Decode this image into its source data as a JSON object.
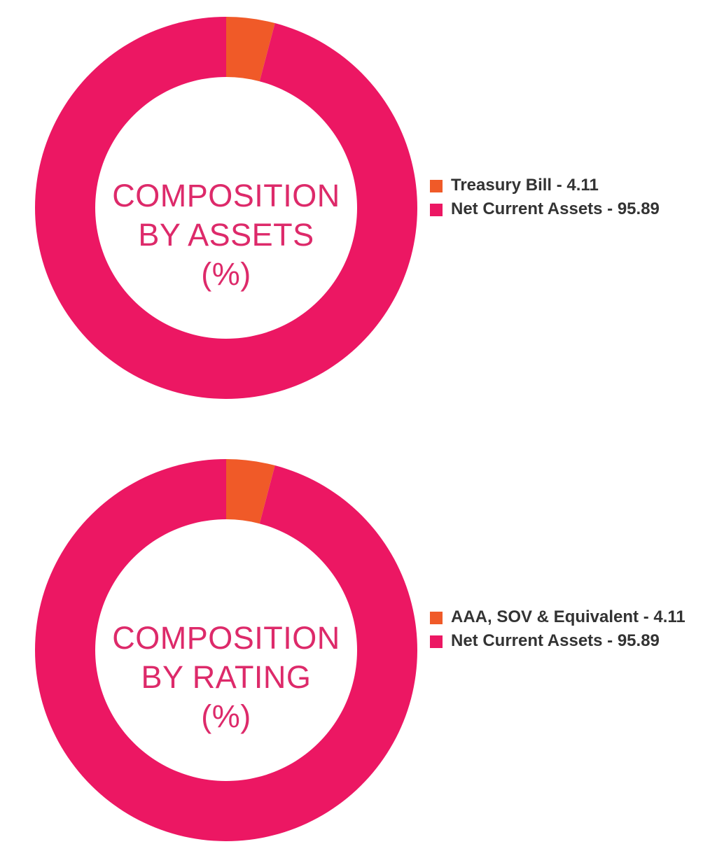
{
  "colors": {
    "orange": "#f05a28",
    "pink": "#ec1763",
    "title_pink": "#dd2a6a",
    "legend_text": "#333333",
    "background": "#ffffff"
  },
  "chart_data": [
    {
      "type": "pie",
      "donut": true,
      "title_lines": [
        "COMPOSITION",
        "BY ASSETS",
        "(%)"
      ],
      "categories": [
        "Treasury Bill",
        "Net Current Assets"
      ],
      "values": [
        4.11,
        95.89
      ],
      "colors": [
        "#f05a28",
        "#ec1763"
      ],
      "legend": [
        "Treasury Bill - 4.11",
        "Net Current Assets - 95.89"
      ],
      "legend_position": "right"
    },
    {
      "type": "pie",
      "donut": true,
      "title_lines": [
        "COMPOSITION",
        "BY RATING",
        "(%)"
      ],
      "categories": [
        "AAA, SOV & Equivalent",
        "Net Current Assets"
      ],
      "values": [
        4.11,
        95.89
      ],
      "colors": [
        "#f05a28",
        "#ec1763"
      ],
      "legend": [
        "AAA, SOV & Equivalent - 4.11",
        "Net Current Assets - 95.89"
      ],
      "legend_position": "right"
    }
  ]
}
